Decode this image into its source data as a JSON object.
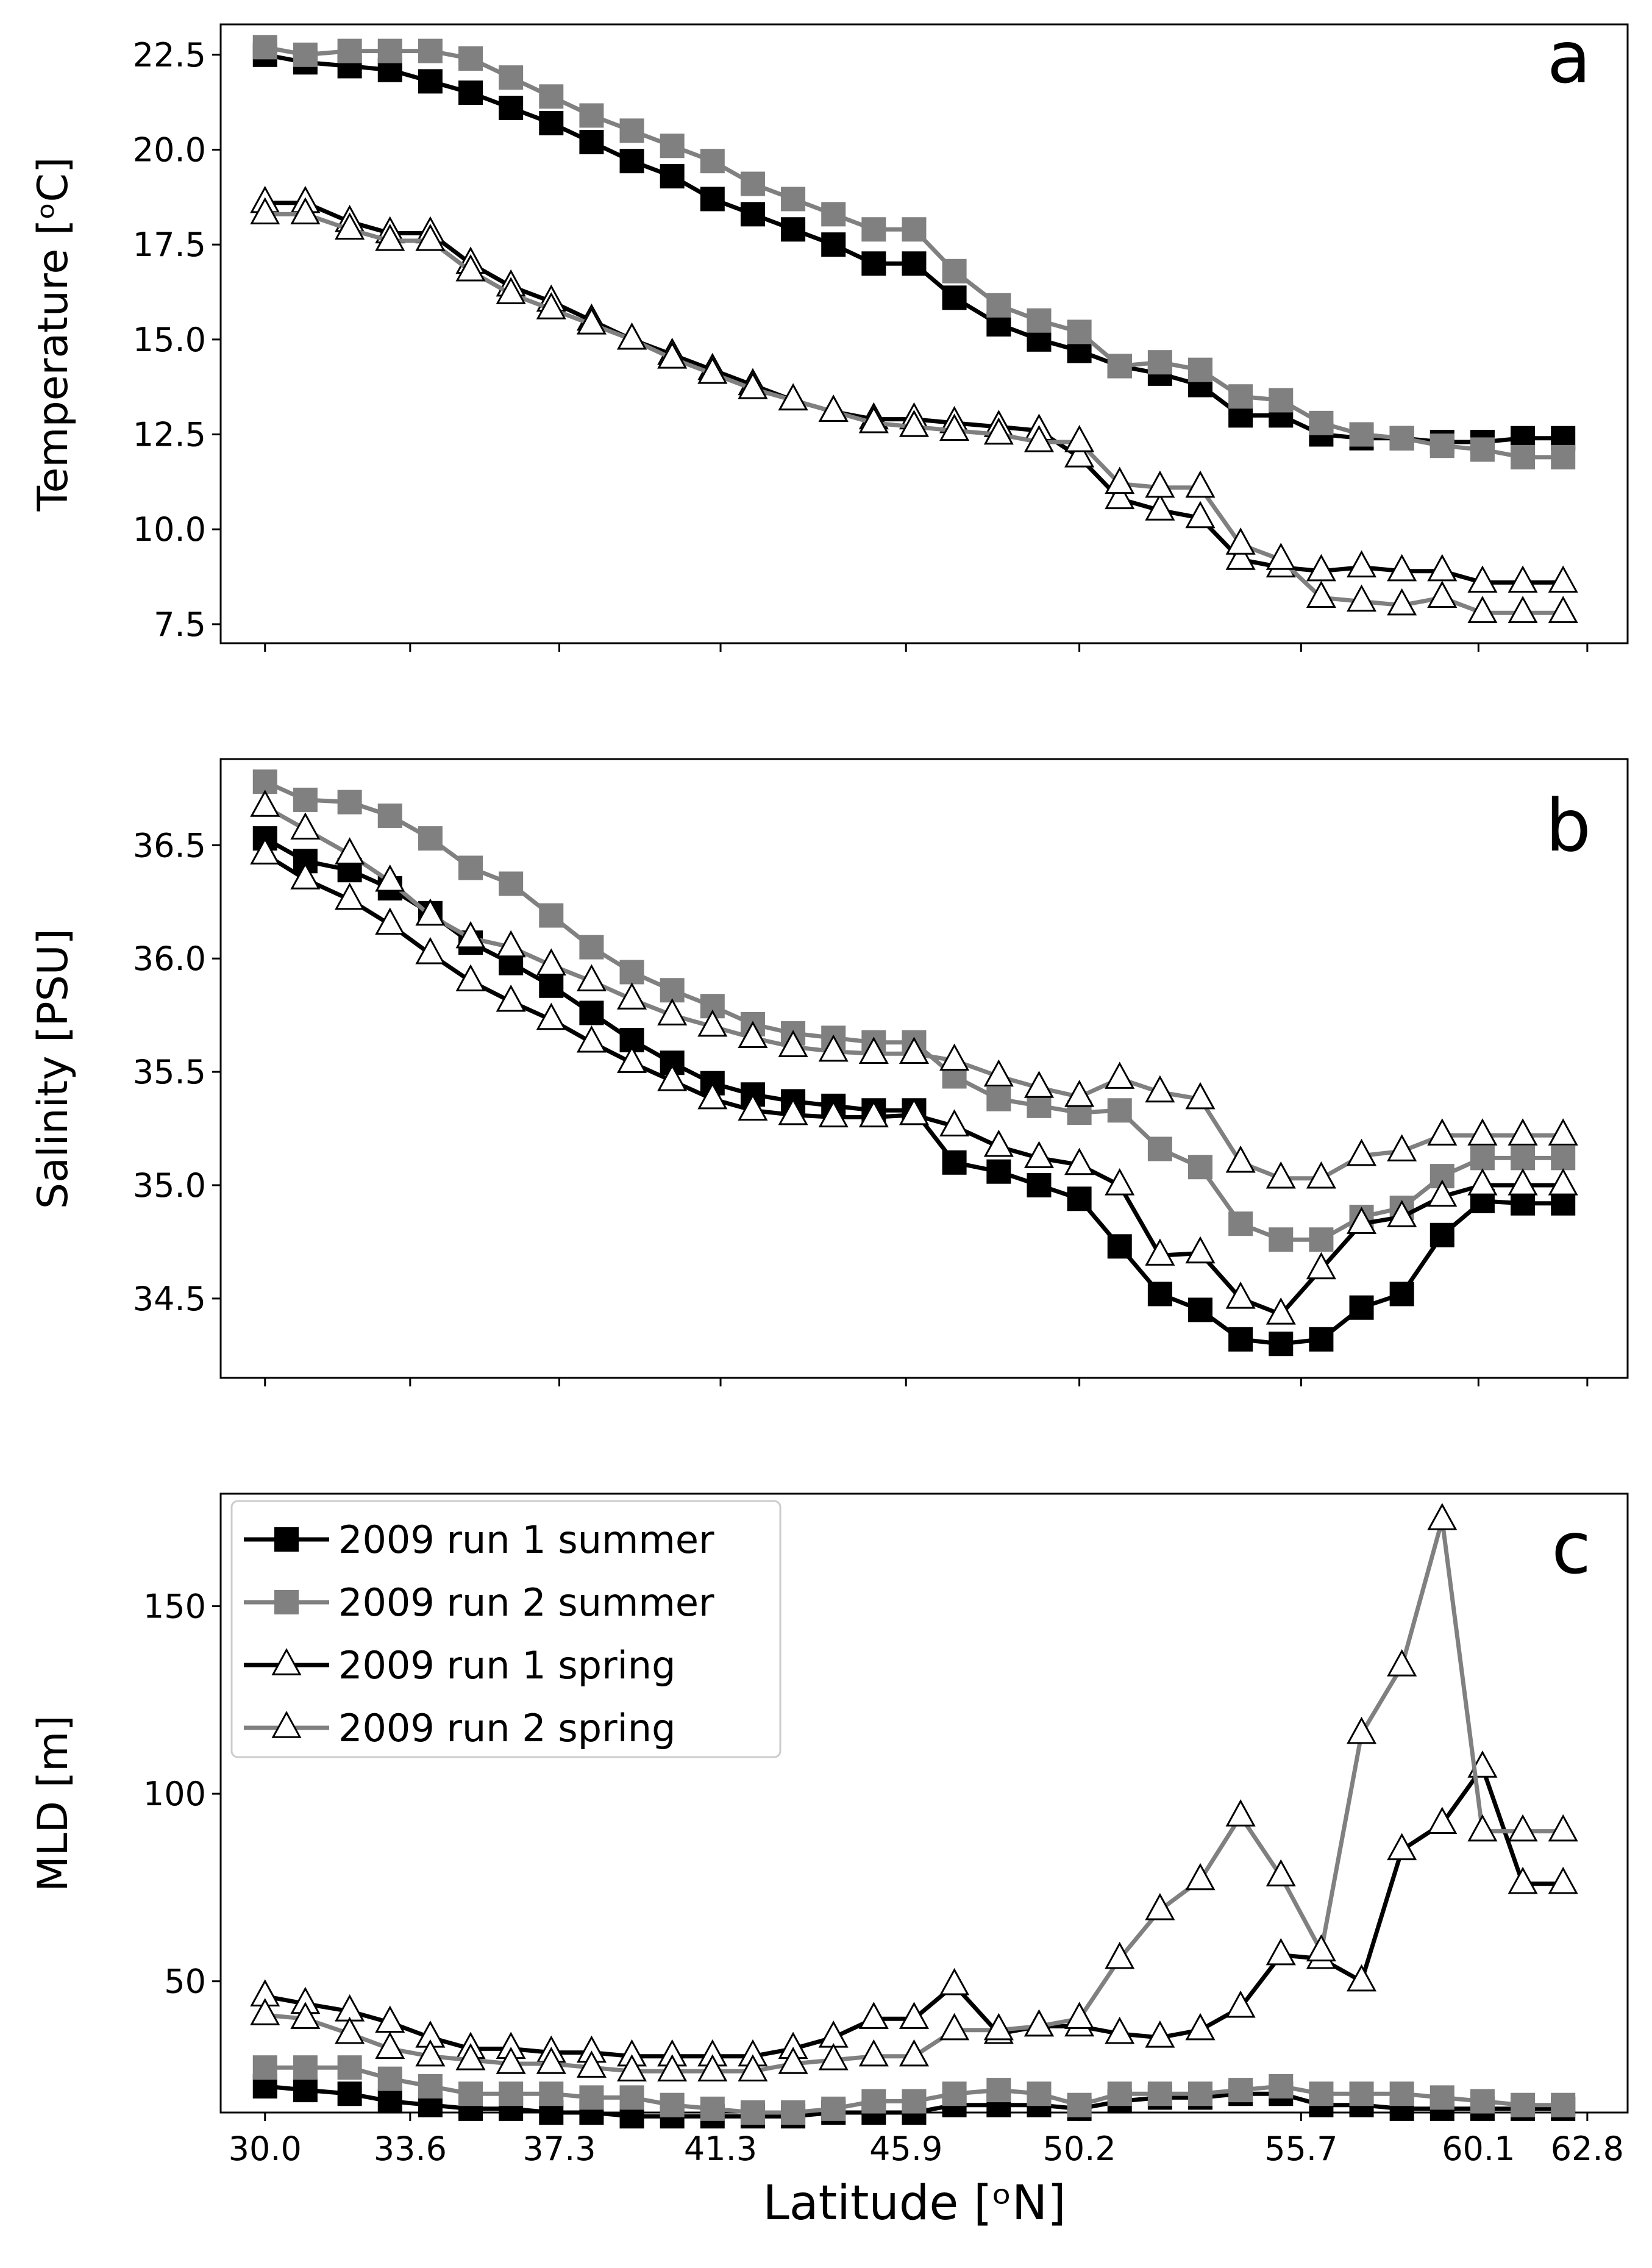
{
  "figure": {
    "xlabel": "Latitude [ᵒN]"
  },
  "legend": {
    "entries": [
      {
        "label": "2009 run 1 summer",
        "color": "#000000",
        "marker": "square"
      },
      {
        "label": "2009 run 2 summer",
        "color": "#808080",
        "marker": "square"
      },
      {
        "label": "2009 run 1 spring",
        "color": "#000000",
        "marker": "triangle"
      },
      {
        "label": "2009 run 2 spring",
        "color": "#808080",
        "marker": "triangle"
      }
    ]
  },
  "chart_data": [
    {
      "type": "line",
      "panel_letter": "a",
      "ylabel": "Temperature [ᵒC]",
      "ylim": [
        7.0,
        23.3
      ],
      "yticks": [
        "7.5",
        "10.0",
        "12.5",
        "15.0",
        "17.5",
        "20.0",
        "22.5"
      ],
      "x": [
        30.0,
        31.0,
        32.1,
        33.1,
        34.1,
        35.1,
        36.1,
        37.1,
        38.1,
        39.1,
        40.1,
        41.1,
        42.1,
        43.1,
        44.1,
        45.1,
        46.1,
        47.1,
        48.2,
        49.2,
        50.2,
        51.2,
        52.2,
        53.2,
        54.2,
        55.2,
        56.2,
        57.2,
        58.2,
        59.2,
        60.2,
        61.2,
        62.2
      ],
      "series": [
        {
          "name": "2009 run 1 summer",
          "values": [
            22.5,
            22.3,
            22.2,
            22.1,
            21.8,
            21.5,
            21.1,
            20.7,
            20.2,
            19.7,
            19.3,
            18.7,
            18.3,
            17.9,
            17.5,
            17.0,
            17.0,
            16.1,
            15.4,
            15.0,
            14.7,
            14.3,
            14.1,
            13.8,
            13.0,
            13.0,
            12.5,
            12.4,
            12.4,
            12.3,
            12.3,
            12.4,
            12.4
          ]
        },
        {
          "name": "2009 run 2 summer",
          "values": [
            22.7,
            22.5,
            22.6,
            22.6,
            22.6,
            22.4,
            21.9,
            21.4,
            20.9,
            20.5,
            20.1,
            19.7,
            19.1,
            18.7,
            18.3,
            17.9,
            17.9,
            16.8,
            15.9,
            15.5,
            15.2,
            14.3,
            14.4,
            14.2,
            13.5,
            13.4,
            12.8,
            12.5,
            12.4,
            12.2,
            12.1,
            11.9,
            11.9
          ]
        },
        {
          "name": "2009 run 1 spring",
          "values": [
            18.6,
            18.6,
            18.1,
            17.8,
            17.8,
            17.0,
            16.4,
            16.0,
            15.5,
            15.0,
            14.6,
            14.2,
            13.8,
            13.4,
            13.1,
            12.9,
            12.9,
            12.8,
            12.7,
            12.6,
            11.9,
            10.8,
            10.5,
            10.3,
            9.2,
            9.0,
            8.9,
            9.0,
            8.9,
            8.9,
            8.6,
            8.6,
            8.6
          ]
        },
        {
          "name": "2009 run 2 spring",
          "values": [
            18.3,
            18.3,
            17.9,
            17.6,
            17.6,
            16.8,
            16.2,
            15.8,
            15.4,
            15.0,
            14.5,
            14.1,
            13.7,
            13.4,
            13.1,
            12.8,
            12.7,
            12.6,
            12.5,
            12.3,
            12.3,
            11.2,
            11.1,
            11.1,
            9.6,
            9.2,
            8.2,
            8.1,
            8.0,
            8.2,
            7.8,
            7.8,
            7.8
          ]
        }
      ]
    },
    {
      "type": "line",
      "panel_letter": "b",
      "ylabel": "Salinity [PSU]",
      "ylim": [
        34.15,
        36.88
      ],
      "yticks": [
        "34.5",
        "35.0",
        "35.5",
        "36.0",
        "36.5"
      ],
      "x": [
        30.0,
        31.0,
        32.1,
        33.1,
        34.1,
        35.1,
        36.1,
        37.1,
        38.1,
        39.1,
        40.1,
        41.1,
        42.1,
        43.1,
        44.1,
        45.1,
        46.1,
        47.1,
        48.2,
        49.2,
        50.2,
        51.2,
        52.2,
        53.2,
        54.2,
        55.2,
        56.2,
        57.2,
        58.2,
        59.2,
        60.2,
        61.2,
        62.2
      ],
      "series": [
        {
          "name": "2009 run 1 summer",
          "values": [
            36.53,
            36.43,
            36.39,
            36.31,
            36.2,
            36.07,
            35.98,
            35.88,
            35.76,
            35.64,
            35.54,
            35.45,
            35.4,
            35.37,
            35.35,
            35.33,
            35.33,
            35.1,
            35.06,
            35.0,
            34.94,
            34.73,
            34.52,
            34.45,
            34.32,
            34.3,
            34.32,
            34.46,
            34.52,
            34.78,
            34.93,
            34.92,
            34.92
          ]
        },
        {
          "name": "2009 run 2 summer",
          "values": [
            36.78,
            36.7,
            36.69,
            36.63,
            36.53,
            36.4,
            36.33,
            36.19,
            36.05,
            35.94,
            35.86,
            35.79,
            35.71,
            35.67,
            35.65,
            35.63,
            35.63,
            35.48,
            35.38,
            35.35,
            35.32,
            35.33,
            35.16,
            35.08,
            34.83,
            34.76,
            34.76,
            34.86,
            34.9,
            35.04,
            35.12,
            35.12,
            35.12
          ]
        },
        {
          "name": "2009 run 1 spring",
          "values": [
            36.46,
            36.35,
            36.26,
            36.15,
            36.02,
            35.9,
            35.81,
            35.73,
            35.63,
            35.54,
            35.46,
            35.38,
            35.33,
            35.31,
            35.3,
            35.3,
            35.31,
            35.26,
            35.17,
            35.12,
            35.09,
            35.0,
            34.69,
            34.7,
            34.5,
            34.43,
            34.63,
            34.83,
            34.86,
            34.95,
            35.0,
            35.0,
            35.0
          ]
        },
        {
          "name": "2009 run 2 spring",
          "values": [
            36.67,
            36.57,
            36.46,
            36.34,
            36.19,
            36.09,
            36.05,
            35.97,
            35.9,
            35.82,
            35.75,
            35.7,
            35.65,
            35.61,
            35.59,
            35.58,
            35.58,
            35.55,
            35.48,
            35.43,
            35.39,
            35.47,
            35.41,
            35.38,
            35.1,
            35.03,
            35.03,
            35.13,
            35.15,
            35.22,
            35.22,
            35.22,
            35.22
          ]
        }
      ]
    },
    {
      "type": "line",
      "panel_letter": "c",
      "ylabel": "MLD [m]",
      "ylim": [
        15,
        180
      ],
      "yticks": [
        "50",
        "100",
        "150"
      ],
      "x": [
        30.0,
        31.0,
        32.1,
        33.1,
        34.1,
        35.1,
        36.1,
        37.1,
        38.1,
        39.1,
        40.1,
        41.1,
        42.1,
        43.1,
        44.1,
        45.1,
        46.1,
        47.1,
        48.2,
        49.2,
        50.2,
        51.2,
        52.2,
        53.2,
        54.2,
        55.2,
        56.2,
        57.2,
        58.2,
        59.2,
        60.2,
        61.2,
        62.2
      ],
      "series": [
        {
          "name": "2009 run 1 summer",
          "values": [
            22,
            21,
            20,
            18,
            17,
            16,
            16,
            15,
            15,
            14,
            14,
            14,
            14,
            14,
            15,
            15,
            15,
            17,
            17,
            17,
            16,
            18,
            19,
            19,
            20,
            20,
            17,
            17,
            16,
            16,
            16,
            16,
            16
          ]
        },
        {
          "name": "2009 run 2 summer",
          "values": [
            27,
            27,
            27,
            24,
            22,
            20,
            20,
            20,
            19,
            19,
            17,
            16,
            15,
            15,
            16,
            18,
            18,
            20,
            21,
            20,
            17,
            20,
            20,
            20,
            21,
            22,
            20,
            20,
            20,
            19,
            18,
            17,
            17
          ]
        },
        {
          "name": "2009 run 1 spring",
          "values": [
            46,
            44,
            42,
            39,
            35,
            32,
            32,
            31,
            31,
            30,
            30,
            30,
            30,
            32,
            35,
            40,
            40,
            49,
            36,
            38,
            38,
            36,
            35,
            37,
            43,
            57,
            56,
            50,
            85,
            92,
            107,
            76,
            76
          ]
        },
        {
          "name": "2009 run 2 spring",
          "values": [
            41,
            40,
            36,
            32,
            30,
            29,
            28,
            28,
            27,
            26,
            26,
            26,
            26,
            28,
            29,
            30,
            30,
            37,
            37,
            38,
            40,
            56,
            69,
            77,
            94,
            78,
            58,
            116,
            134,
            173,
            90,
            90,
            90
          ]
        }
      ]
    }
  ],
  "xaxis": {
    "ticks": [
      {
        "value": 30.0,
        "label": "30.0"
      },
      {
        "value": 33.6,
        "label": "33.6"
      },
      {
        "value": 37.3,
        "label": "37.3"
      },
      {
        "value": 41.3,
        "label": "41.3"
      },
      {
        "value": 45.9,
        "label": "45.9"
      },
      {
        "value": 50.2,
        "label": "50.2"
      },
      {
        "value": 55.7,
        "label": "55.7"
      },
      {
        "value": 60.1,
        "label": "60.1"
      },
      {
        "value": 62.8,
        "label": "62.8"
      }
    ]
  }
}
